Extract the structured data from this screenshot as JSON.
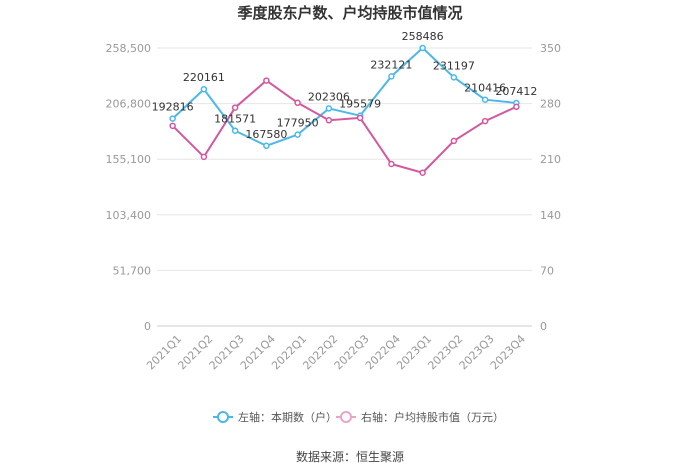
{
  "chart_data": {
    "type": "line",
    "title": "季度股东户数、户均持股市值情况",
    "categories": [
      "2021Q1",
      "2021Q2",
      "2021Q3",
      "2021Q4",
      "2022Q1",
      "2022Q2",
      "2022Q3",
      "2022Q4",
      "2023Q1",
      "2023Q2",
      "2023Q3",
      "2023Q4"
    ],
    "left_axis": {
      "ylim": [
        0,
        258500
      ],
      "ticks": [
        "0",
        "51,700",
        "103,400",
        "155,100",
        "206,800",
        "258,500"
      ],
      "tick_values": [
        0,
        51700,
        103400,
        155100,
        206800,
        258500
      ]
    },
    "right_axis": {
      "ylim": [
        0,
        350
      ],
      "ticks": [
        "0",
        "70",
        "140",
        "210",
        "280",
        "350"
      ],
      "tick_values": [
        0,
        70,
        140,
        210,
        280,
        350
      ]
    },
    "series": [
      {
        "name": "左轴：本期数（户）",
        "axis": "left",
        "color": "#4bb8e8",
        "values": [
          192816,
          220161,
          181571,
          167580,
          177950,
          202306,
          195579,
          232121,
          258486,
          231197,
          210416,
          207412
        ],
        "labels": [
          "192816",
          "220161",
          "181571",
          "167580",
          "177950",
          "202306",
          "195579",
          "232121",
          "258486",
          "231197",
          "210416",
          "207412"
        ]
      },
      {
        "name": "右轴：户均持股市值（万元）",
        "axis": "right",
        "color": "#d4589e",
        "values": [
          252,
          213,
          275,
          309,
          281,
          259,
          262,
          204,
          193,
          233,
          258,
          276
        ]
      }
    ],
    "legend_position": "bottom",
    "grid": true
  },
  "source": "数据来源：恒生聚源"
}
